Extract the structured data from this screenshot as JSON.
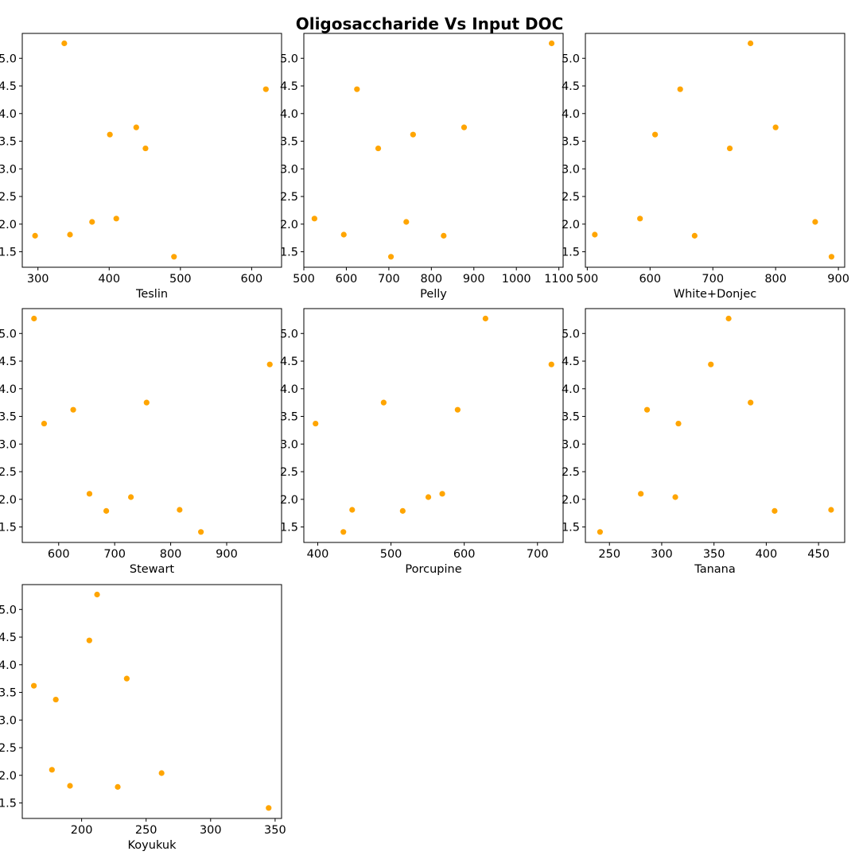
{
  "figure": {
    "title": "Oligosaccharide Vs Input DOC"
  },
  "chart_data": [
    {
      "type": "scatter",
      "xlabel": "Teslin",
      "xlim": [
        278,
        642
      ],
      "ylim": [
        1.22,
        5.45
      ],
      "xticks": [
        300,
        400,
        500,
        600
      ],
      "yticks": [
        1.5,
        2.0,
        2.5,
        3.0,
        3.5,
        4.0,
        4.5,
        5.0
      ],
      "color": "#FFA500",
      "x": [
        337,
        620,
        401,
        438,
        451,
        410,
        376,
        345,
        296,
        491
      ],
      "y": [
        5.27,
        4.44,
        3.62,
        3.75,
        3.37,
        2.1,
        2.04,
        1.81,
        1.79,
        1.41
      ]
    },
    {
      "type": "scatter",
      "xlabel": "Pelly",
      "xlim": [
        500,
        1110
      ],
      "ylim": [
        1.22,
        5.45
      ],
      "xticks": [
        500,
        600,
        700,
        800,
        900,
        1000,
        1100
      ],
      "yticks": [
        1.5,
        2.0,
        2.5,
        3.0,
        3.5,
        4.0,
        4.5,
        5.0
      ],
      "color": "#FFA500",
      "x": [
        1083,
        625,
        757,
        877,
        675,
        525,
        741,
        594,
        829,
        705
      ],
      "y": [
        5.27,
        4.44,
        3.62,
        3.75,
        3.37,
        2.1,
        2.04,
        1.81,
        1.79,
        1.41
      ]
    },
    {
      "type": "scatter",
      "xlabel": "White+Donjec",
      "xlim": [
        497,
        910
      ],
      "ylim": [
        1.22,
        5.45
      ],
      "xticks": [
        500,
        600,
        700,
        800,
        900
      ],
      "yticks": [
        1.5,
        2.0,
        2.5,
        3.0,
        3.5,
        4.0,
        4.5,
        5.0
      ],
      "color": "#FFA500",
      "x": [
        760,
        648,
        608,
        800,
        727,
        584,
        863,
        512,
        671,
        889
      ],
      "y": [
        5.27,
        4.44,
        3.62,
        3.75,
        3.37,
        2.1,
        2.04,
        1.81,
        1.79,
        1.41
      ]
    },
    {
      "type": "scatter",
      "xlabel": "Stewart",
      "xlim": [
        535,
        998
      ],
      "ylim": [
        1.22,
        5.45
      ],
      "xticks": [
        600,
        700,
        800,
        900
      ],
      "yticks": [
        1.5,
        2.0,
        2.5,
        3.0,
        3.5,
        4.0,
        4.5,
        5.0
      ],
      "color": "#FFA500",
      "x": [
        556,
        977,
        626,
        757,
        574,
        655,
        729,
        816,
        685,
        854
      ],
      "y": [
        5.27,
        4.44,
        3.62,
        3.75,
        3.37,
        2.1,
        2.04,
        1.81,
        1.79,
        1.41
      ]
    },
    {
      "type": "scatter",
      "xlabel": "Porcupine",
      "xlim": [
        381,
        735
      ],
      "ylim": [
        1.22,
        5.45
      ],
      "xticks": [
        400,
        500,
        600,
        700
      ],
      "yticks": [
        1.5,
        2.0,
        2.5,
        3.0,
        3.5,
        4.0,
        4.5,
        5.0
      ],
      "color": "#FFA500",
      "x": [
        629,
        719,
        591,
        490,
        397,
        570,
        551,
        447,
        516,
        435
      ],
      "y": [
        5.27,
        4.44,
        3.62,
        3.75,
        3.37,
        2.1,
        2.04,
        1.81,
        1.79,
        1.41
      ]
    },
    {
      "type": "scatter",
      "xlabel": "Tanana",
      "xlim": [
        227,
        475
      ],
      "ylim": [
        1.22,
        5.45
      ],
      "xticks": [
        250,
        300,
        350,
        400,
        450
      ],
      "yticks": [
        1.5,
        2.0,
        2.5,
        3.0,
        3.5,
        4.0,
        4.5,
        5.0
      ],
      "color": "#FFA500",
      "x": [
        364,
        347,
        286,
        385,
        316,
        280,
        313,
        462,
        408,
        241
      ],
      "y": [
        5.27,
        4.44,
        3.62,
        3.75,
        3.37,
        2.1,
        2.04,
        1.81,
        1.79,
        1.41
      ]
    },
    {
      "type": "scatter",
      "xlabel": "Koyukuk",
      "xlim": [
        154,
        355
      ],
      "ylim": [
        1.22,
        5.45
      ],
      "xticks": [
        200,
        250,
        300,
        350
      ],
      "yticks": [
        1.5,
        2.0,
        2.5,
        3.0,
        3.5,
        4.0,
        4.5,
        5.0
      ],
      "color": "#FFA500",
      "x": [
        212,
        206,
        163,
        235,
        180,
        177,
        262,
        191,
        228,
        345
      ],
      "y": [
        5.27,
        4.44,
        3.62,
        3.75,
        3.37,
        2.1,
        2.04,
        1.81,
        1.79,
        1.41
      ]
    }
  ]
}
